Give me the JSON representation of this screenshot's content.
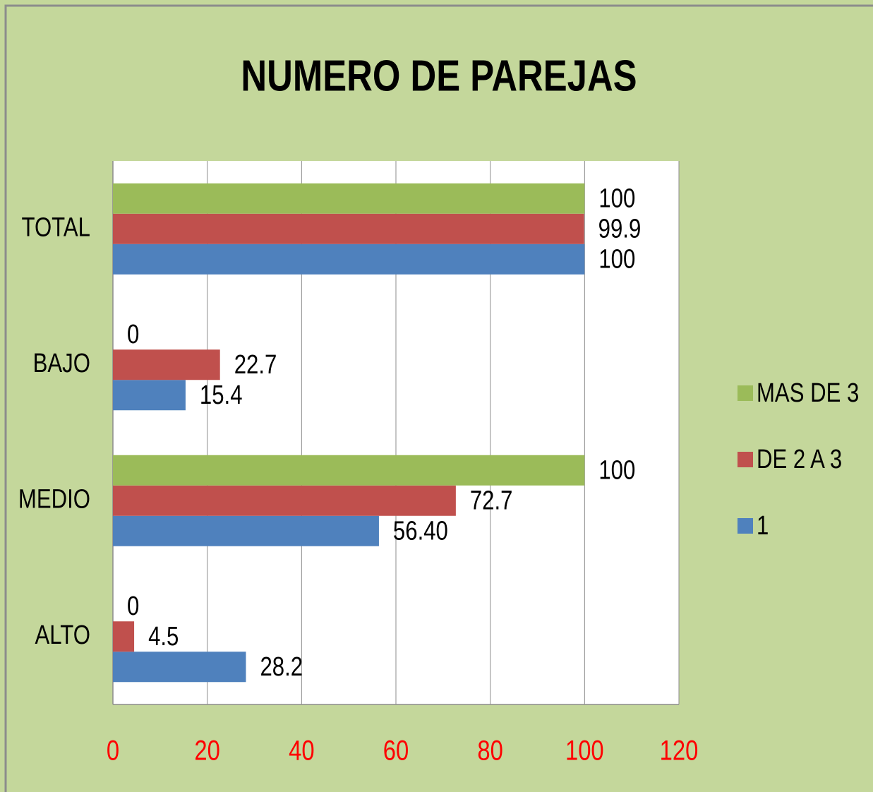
{
  "chart_data": {
    "type": "hbar",
    "title": "NUMERO DE PAREJAS",
    "categories": [
      "TOTAL",
      "BAJO",
      "MEDIO",
      "ALTO"
    ],
    "series": [
      {
        "name": "1",
        "color": "#4f81bd",
        "values": [
          100,
          15.4,
          56.4,
          28.2
        ],
        "value_labels": [
          "100",
          "15.4",
          "56.40",
          "28.2"
        ]
      },
      {
        "name": "DE 2 A 3",
        "color": "#c0504d",
        "values": [
          99.9,
          22.7,
          72.7,
          4.5
        ]
      },
      {
        "name": "MAS DE 3",
        "color": "#9bbb59",
        "values": [
          100,
          0,
          100,
          0
        ]
      }
    ],
    "xlim": [
      0,
      120
    ],
    "xticks": [
      0,
      20,
      40,
      60,
      80,
      100,
      120
    ],
    "grid": true,
    "legend": "right"
  }
}
